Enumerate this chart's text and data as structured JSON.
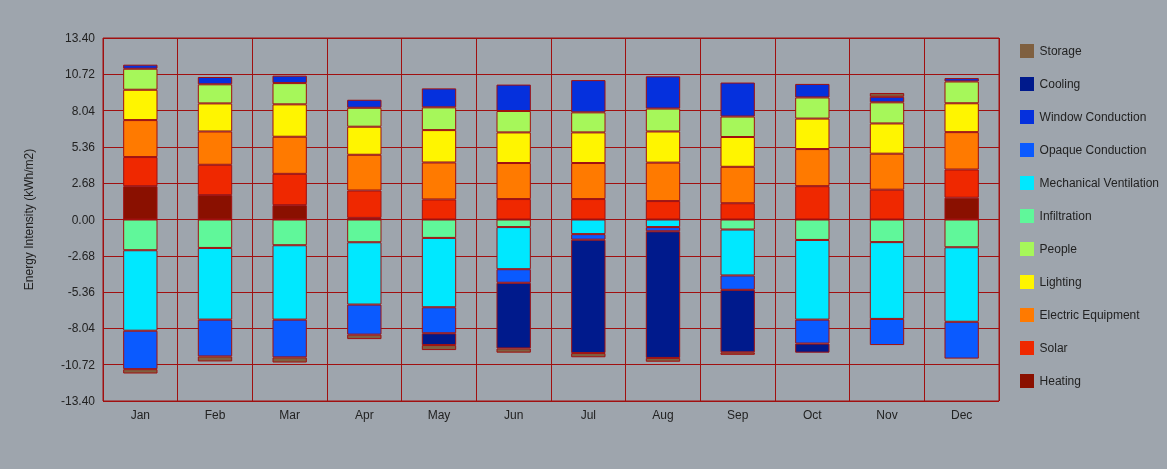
{
  "chart_data": {
    "type": "bar",
    "stacked": true,
    "ylabel": "Energy Intensity (kWh/m2)",
    "categories": [
      "Jan",
      "Feb",
      "Mar",
      "Apr",
      "May",
      "Jun",
      "Jul",
      "Aug",
      "Sep",
      "Oct",
      "Nov",
      "Dec"
    ],
    "series": [
      {
        "name": "Heating",
        "color": "#8a1000",
        "values": [
          2.46,
          1.8,
          1.06,
          0.12,
          null,
          null,
          null,
          null,
          null,
          null,
          null,
          1.61
        ]
      },
      {
        "name": "Solar",
        "color": "#ef2800",
        "values": [
          2.15,
          2.24,
          2.31,
          2.02,
          1.48,
          1.51,
          1.51,
          1.36,
          1.2,
          2.46,
          2.2,
          2.08
        ]
      },
      {
        "name": "Electric Equipment",
        "color": "#ff7a00",
        "values": [
          2.73,
          2.46,
          2.74,
          2.64,
          2.73,
          2.66,
          2.66,
          2.84,
          2.69,
          2.74,
          2.66,
          2.76
        ]
      },
      {
        "name": "Lighting",
        "color": "#fff500",
        "values": [
          2.24,
          2.07,
          2.39,
          2.07,
          2.39,
          2.26,
          2.26,
          2.3,
          2.2,
          2.25,
          2.23,
          2.13
        ]
      },
      {
        "name": "People",
        "color": "#a6f75a",
        "values": [
          1.55,
          1.41,
          1.57,
          1.4,
          1.68,
          1.58,
          1.48,
          1.69,
          1.51,
          1.56,
          1.56,
          1.61
        ]
      },
      {
        "name": "Infiltration",
        "color": "#60f79a",
        "values": [
          -2.27,
          -2.1,
          -1.9,
          -1.68,
          -1.36,
          -0.56,
          null,
          null,
          -0.74,
          -1.51,
          -1.67,
          -2.05
        ]
      },
      {
        "name": "Mechanical Ventilation",
        "color": "#00e8ff",
        "values": [
          -5.94,
          -5.29,
          -5.49,
          -4.6,
          -5.12,
          -3.11,
          -1.08,
          -0.56,
          -3.39,
          -5.88,
          -5.67,
          -5.5
        ]
      },
      {
        "name": "Opaque Conduction",
        "color": "#0a5aff",
        "values": [
          -2.84,
          -2.72,
          -2.79,
          -2.22,
          -1.92,
          -1.0,
          -0.41,
          -0.31,
          -1.06,
          -1.77,
          -1.93,
          -2.72
        ]
      },
      {
        "name": "Window Conduction",
        "color": "#0530dd",
        "values": [
          0.3,
          0.54,
          0.55,
          0.59,
          1.4,
          1.95,
          2.38,
          2.38,
          2.51,
          1.0,
          0.41,
          0.25
        ]
      },
      {
        "name": "Cooling",
        "color": "#001a8c",
        "values": [
          null,
          null,
          null,
          null,
          -0.87,
          -4.85,
          -8.37,
          -9.35,
          -4.62,
          -0.67,
          null,
          null
        ]
      },
      {
        "name": "Storage",
        "color": "#7f6040",
        "values": [
          -0.32,
          -0.37,
          -0.38,
          -0.33,
          -0.37,
          -0.31,
          -0.31,
          -0.28,
          -0.18,
          null,
          0.28,
          null
        ]
      }
    ],
    "ylim": [
      -13.4,
      13.4
    ],
    "yticks": [
      {
        "value": -13.4,
        "label": "-13.40"
      },
      {
        "value": -10.72,
        "label": "-10.72"
      },
      {
        "value": -8.04,
        "label": "-8.04"
      },
      {
        "value": -5.36,
        "label": "-5.36"
      },
      {
        "value": -2.68,
        "label": "-2.68"
      },
      {
        "value": 0,
        "label": "0.00"
      },
      {
        "value": 2.68,
        "label": "2.68"
      },
      {
        "value": 5.36,
        "label": "5.36"
      },
      {
        "value": 8.04,
        "label": "8.04"
      },
      {
        "value": 10.72,
        "label": "10.72"
      },
      {
        "value": 13.4,
        "label": "13.40"
      }
    ],
    "grid": true,
    "legend": "right"
  }
}
